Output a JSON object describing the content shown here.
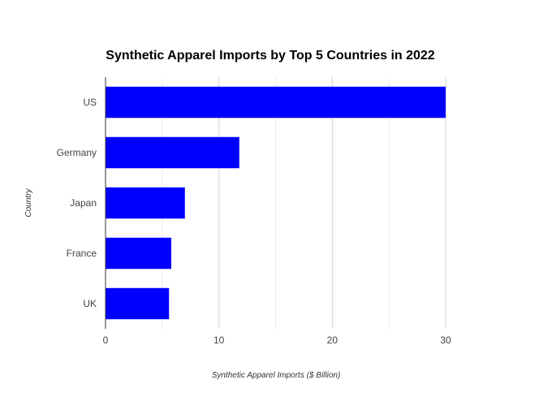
{
  "chart_data": {
    "type": "bar",
    "orientation": "horizontal",
    "title": "Synthetic Apparel Imports by Top 5 Countries in 2022",
    "xlabel": "Synthetic Apparel Imports ($ Billion)",
    "ylabel": "Country",
    "categories": [
      "US",
      "Germany",
      "Japan",
      "France",
      "UK"
    ],
    "values": [
      30,
      11.8,
      7,
      5.8,
      5.6
    ],
    "xlim": [
      0,
      30
    ],
    "x_ticks": [
      "0",
      "10",
      "20",
      "30"
    ],
    "grid": true,
    "bar_color": "#0000ff"
  }
}
